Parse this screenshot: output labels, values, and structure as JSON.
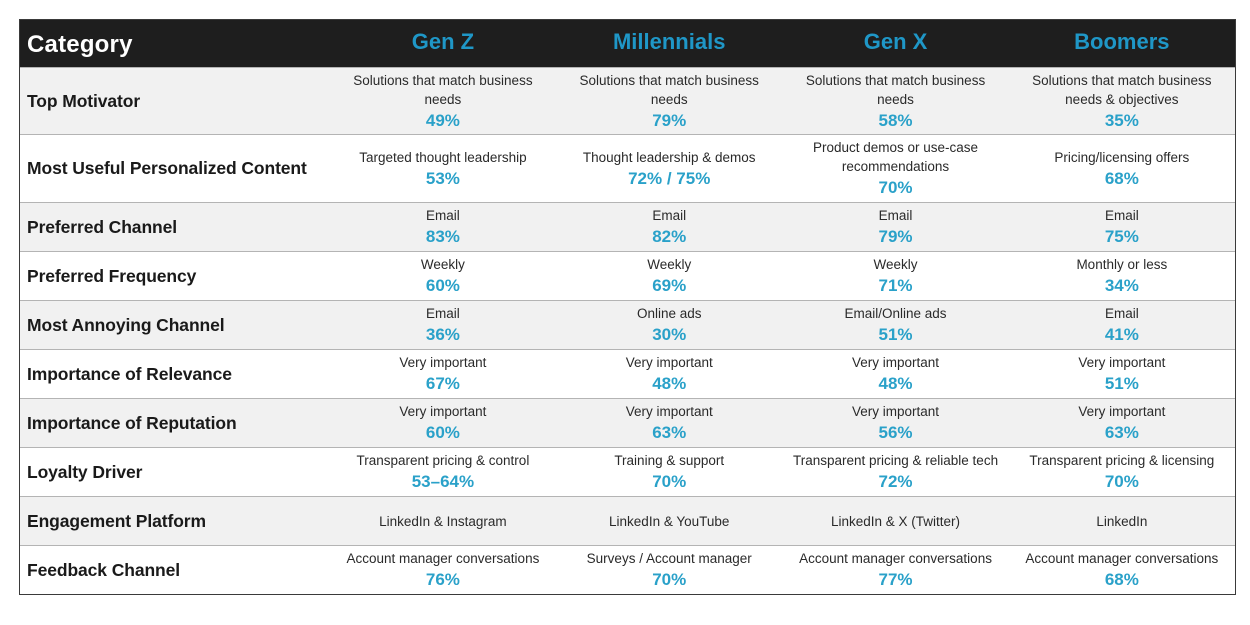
{
  "chart_data": {
    "type": "table",
    "title": "",
    "columns": [
      "Category",
      "Gen Z",
      "Millennials",
      "Gen X",
      "Boomers"
    ],
    "colors": {
      "header_bg": "#1e1e1e",
      "header_category_text": "#ffffff",
      "header_generation_text": "#1f97c7",
      "value_text": "#2aa1c9",
      "row_shade": "#f1f1f1"
    },
    "rows": [
      {
        "category": "Top Motivator",
        "cells": [
          {
            "desc": "Solutions that match business needs",
            "value": "49%"
          },
          {
            "desc": "Solutions that match business needs",
            "value": "79%"
          },
          {
            "desc": "Solutions that match business needs",
            "value": "58%"
          },
          {
            "desc": "Solutions that match business needs & objectives",
            "value": "35%"
          }
        ]
      },
      {
        "category": "Most Useful Personalized Content",
        "cells": [
          {
            "desc": "Targeted thought leadership",
            "value": "53%"
          },
          {
            "desc": "Thought leadership & demos",
            "value": "72% / 75%"
          },
          {
            "desc": "Product demos or use-case recommendations",
            "value": "70%"
          },
          {
            "desc": "Pricing/licensing offers",
            "value": "68%"
          }
        ]
      },
      {
        "category": "Preferred Channel",
        "cells": [
          {
            "desc": "Email",
            "value": "83%"
          },
          {
            "desc": "Email",
            "value": "82%"
          },
          {
            "desc": "Email",
            "value": "79%"
          },
          {
            "desc": "Email",
            "value": "75%"
          }
        ]
      },
      {
        "category": "Preferred Frequency",
        "cells": [
          {
            "desc": "Weekly",
            "value": "60%"
          },
          {
            "desc": "Weekly",
            "value": "69%"
          },
          {
            "desc": "Weekly",
            "value": "71%"
          },
          {
            "desc": "Monthly or less",
            "value": "34%"
          }
        ]
      },
      {
        "category": "Most Annoying Channel",
        "cells": [
          {
            "desc": "Email",
            "value": "36%"
          },
          {
            "desc": "Online ads",
            "value": "30%"
          },
          {
            "desc": "Email/Online ads",
            "value": "51%"
          },
          {
            "desc": "Email",
            "value": "41%"
          }
        ]
      },
      {
        "category": "Importance of Relevance",
        "cells": [
          {
            "desc": "Very important",
            "value": "67%"
          },
          {
            "desc": "Very important",
            "value": "48%"
          },
          {
            "desc": "Very important",
            "value": "48%"
          },
          {
            "desc": "Very important",
            "value": "51%"
          }
        ]
      },
      {
        "category": "Importance of Reputation",
        "cells": [
          {
            "desc": "Very important",
            "value": "60%"
          },
          {
            "desc": "Very important",
            "value": "63%"
          },
          {
            "desc": "Very important",
            "value": "56%"
          },
          {
            "desc": "Very important",
            "value": "63%"
          }
        ]
      },
      {
        "category": "Loyalty Driver",
        "cells": [
          {
            "desc": "Transparent pricing & control",
            "value": "53–64%"
          },
          {
            "desc": "Training & support",
            "value": "70%"
          },
          {
            "desc": "Transparent pricing & reliable tech",
            "value": "72%"
          },
          {
            "desc": "Transparent pricing & licensing",
            "value": "70%"
          }
        ]
      },
      {
        "category": "Engagement Platform",
        "cells": [
          {
            "desc": "LinkedIn & Instagram",
            "value": null
          },
          {
            "desc": "LinkedIn & YouTube",
            "value": null
          },
          {
            "desc": "LinkedIn & X (Twitter)",
            "value": null
          },
          {
            "desc": "LinkedIn",
            "value": null
          }
        ]
      },
      {
        "category": "Feedback Channel",
        "cells": [
          {
            "desc": "Account manager conversations",
            "value": "76%"
          },
          {
            "desc": "Surveys / Account manager",
            "value": "70%"
          },
          {
            "desc": "Account manager conversations",
            "value": "77%"
          },
          {
            "desc": "Account manager conversations",
            "value": "68%"
          }
        ]
      }
    ]
  }
}
